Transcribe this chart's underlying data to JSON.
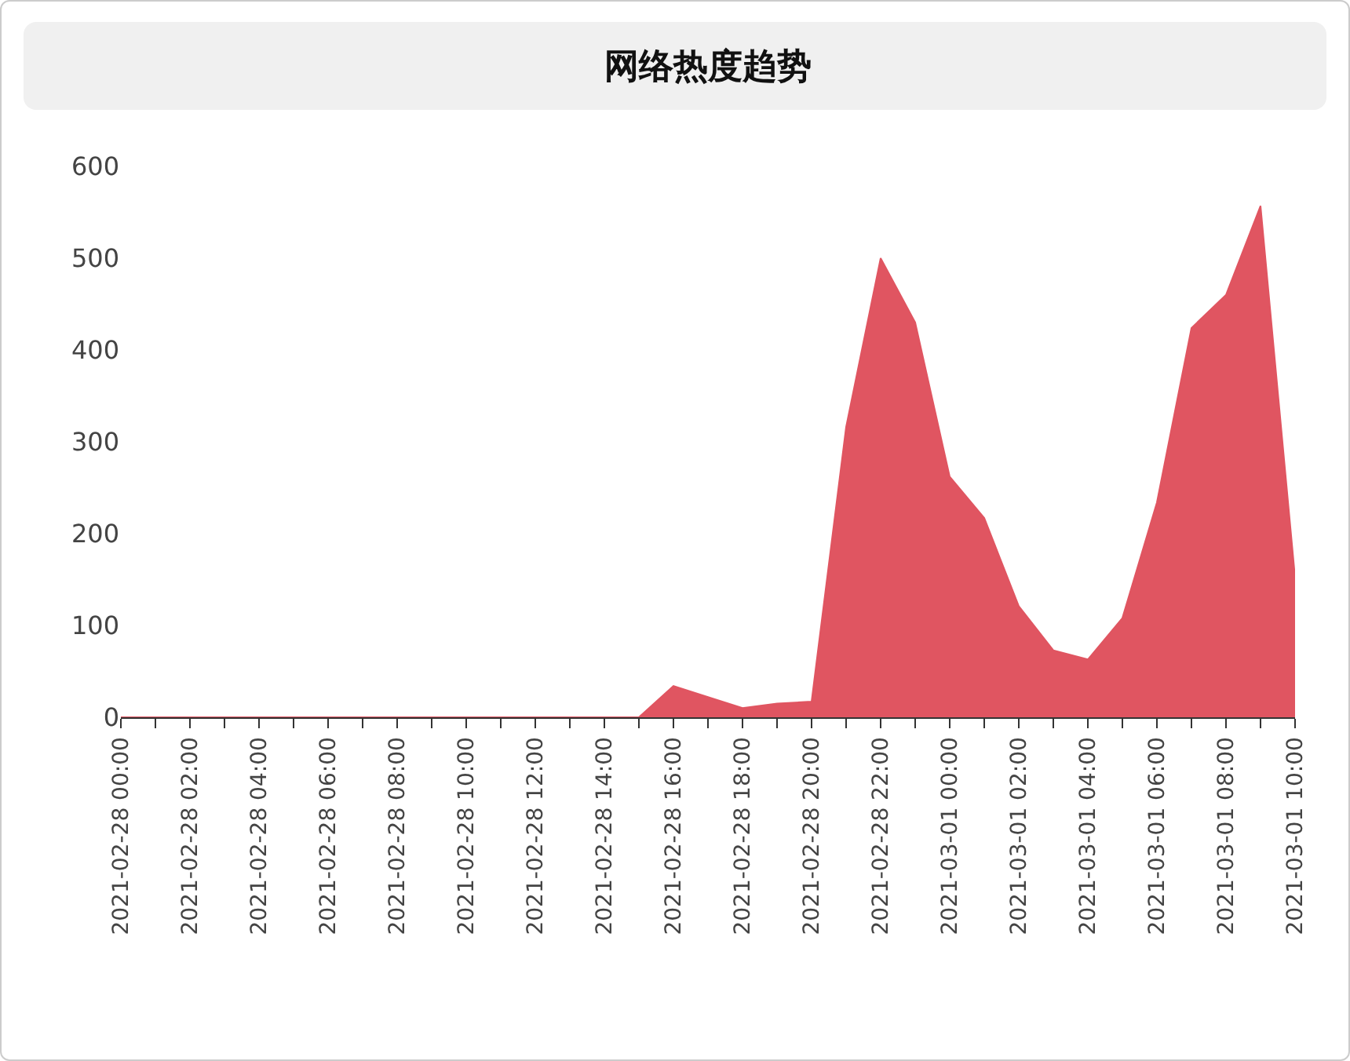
{
  "chart_data": {
    "type": "area",
    "title": "网络热度趋势",
    "x": [
      "2021-02-28T00:00",
      "2021-02-28T01:00",
      "2021-02-28T02:00",
      "2021-02-28T03:00",
      "2021-02-28T04:00",
      "2021-02-28T05:00",
      "2021-02-28T06:00",
      "2021-02-28T07:00",
      "2021-02-28T08:00",
      "2021-02-28T09:00",
      "2021-02-28T10:00",
      "2021-02-28T11:00",
      "2021-02-28T12:00",
      "2021-02-28T13:00",
      "2021-02-28T14:00",
      "2021-02-28T15:00",
      "2021-02-28T16:00",
      "2021-02-28T17:00",
      "2021-02-28T18:00",
      "2021-02-28T19:00",
      "2021-02-28T20:00",
      "2021-02-28T21:00",
      "2021-02-28T22:00",
      "2021-02-28T23:00",
      "2021-03-01T00:00",
      "2021-03-01T01:00",
      "2021-03-01T02:00",
      "2021-03-01T03:00",
      "2021-03-01T04:00",
      "2021-03-01T05:00",
      "2021-03-01T06:00",
      "2021-03-01T07:00",
      "2021-03-01T08:00",
      "2021-03-01T09:00",
      "2021-03-01T10:00"
    ],
    "series": [
      {
        "color": "#e05561",
        "values": [
          0,
          0,
          0,
          0,
          0,
          0,
          0,
          0,
          0,
          0,
          0,
          0,
          0,
          0,
          0,
          0,
          34,
          22,
          10,
          15,
          17,
          316,
          500,
          430,
          262,
          217,
          121,
          73,
          63,
          108,
          234,
          424,
          460,
          557,
          152
        ]
      }
    ],
    "xlim": [
      "2021-02-28T00:00",
      "2021-03-01T10:00"
    ],
    "xticks": [
      {
        "value": "2021-02-28T00:00",
        "label": "2021-02-28 00:00"
      },
      {
        "value": "2021-02-28T01:00",
        "label": null
      },
      {
        "value": "2021-02-28T02:00",
        "label": "2021-02-28 02:00"
      },
      {
        "value": "2021-02-28T03:00",
        "label": null
      },
      {
        "value": "2021-02-28T04:00",
        "label": "2021-02-28 04:00"
      },
      {
        "value": "2021-02-28T05:00",
        "label": null
      },
      {
        "value": "2021-02-28T06:00",
        "label": "2021-02-28 06:00"
      },
      {
        "value": "2021-02-28T07:00",
        "label": null
      },
      {
        "value": "2021-02-28T08:00",
        "label": "2021-02-28 08:00"
      },
      {
        "value": "2021-02-28T09:00",
        "label": null
      },
      {
        "value": "2021-02-28T10:00",
        "label": "2021-02-28 10:00"
      },
      {
        "value": "2021-02-28T11:00",
        "label": null
      },
      {
        "value": "2021-02-28T12:00",
        "label": "2021-02-28 12:00"
      },
      {
        "value": "2021-02-28T13:00",
        "label": null
      },
      {
        "value": "2021-02-28T14:00",
        "label": "2021-02-28 14:00"
      },
      {
        "value": "2021-02-28T15:00",
        "label": null
      },
      {
        "value": "2021-02-28T16:00",
        "label": "2021-02-28 16:00"
      },
      {
        "value": "2021-02-28T17:00",
        "label": null
      },
      {
        "value": "2021-02-28T18:00",
        "label": "2021-02-28 18:00"
      },
      {
        "value": "2021-02-28T19:00",
        "label": null
      },
      {
        "value": "2021-02-28T20:00",
        "label": "2021-02-28 20:00"
      },
      {
        "value": "2021-02-28T21:00",
        "label": null
      },
      {
        "value": "2021-02-28T22:00",
        "label": "2021-02-28 22:00"
      },
      {
        "value": "2021-02-28T23:00",
        "label": null
      },
      {
        "value": "2021-03-01T00:00",
        "label": "2021-03-01 00:00"
      },
      {
        "value": "2021-03-01T01:00",
        "label": null
      },
      {
        "value": "2021-03-01T02:00",
        "label": "2021-03-01 02:00"
      },
      {
        "value": "2021-03-01T03:00",
        "label": null
      },
      {
        "value": "2021-03-01T04:00",
        "label": "2021-03-01 04:00"
      },
      {
        "value": "2021-03-01T05:00",
        "label": null
      },
      {
        "value": "2021-03-01T06:00",
        "label": "2021-03-01 06:00"
      },
      {
        "value": "2021-03-01T07:00",
        "label": null
      },
      {
        "value": "2021-03-01T08:00",
        "label": "2021-03-01 08:00"
      },
      {
        "value": "2021-03-01T09:00",
        "label": null
      },
      {
        "value": "2021-03-01T10:00",
        "label": "2021-03-01 10:00"
      }
    ],
    "ylim": [
      0,
      600
    ],
    "yticks": [
      0,
      100,
      200,
      300,
      400,
      500,
      600
    ],
    "grid": false
  }
}
